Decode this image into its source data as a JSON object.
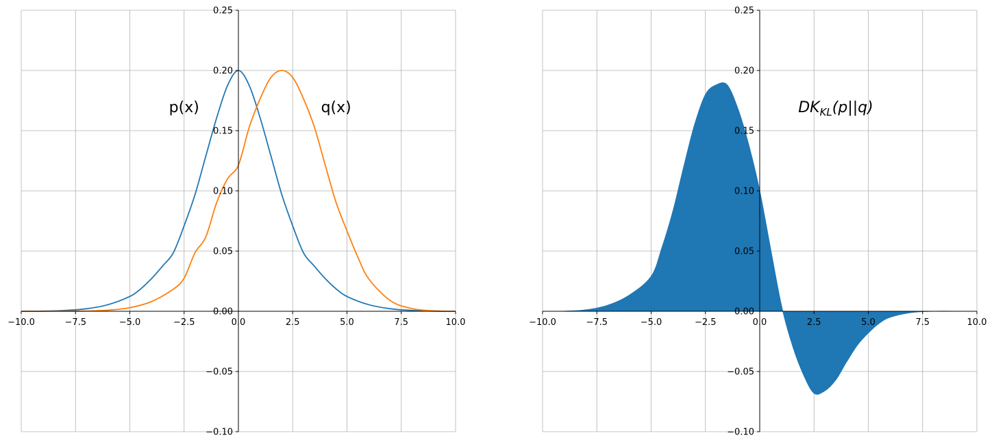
{
  "chart_data": [
    {
      "type": "line",
      "title": "",
      "xlabel": "",
      "ylabel": "",
      "xlim": [
        -10,
        10
      ],
      "ylim": [
        -0.1,
        0.25
      ],
      "grid": true,
      "x_ticks": [
        "−10.0",
        "−7.5",
        "−5.0",
        "−2.5",
        "0.0",
        "2.5",
        "5.0",
        "7.5",
        "10.0"
      ],
      "x_tick_values": [
        -10,
        -7.5,
        -5,
        -2.5,
        0,
        2.5,
        5,
        7.5,
        10
      ],
      "y_ticks": [
        "−0.10",
        "−0.05",
        "0.00",
        "0.05",
        "0.10",
        "0.15",
        "0.20",
        "0.25"
      ],
      "y_tick_values": [
        -0.1,
        -0.05,
        0,
        0.05,
        0.1,
        0.15,
        0.2,
        0.25
      ],
      "series": [
        {
          "name": "p(x)",
          "color": "#1f77b4",
          "x": [
            -10,
            -9,
            -8,
            -7,
            -6,
            -5,
            -4.5,
            -4,
            -3.5,
            -3,
            -2.5,
            -2,
            -1.5,
            -1,
            -0.5,
            0,
            0.5,
            1,
            1.5,
            2,
            2.5,
            3,
            3.5,
            4,
            4.5,
            5,
            6,
            7,
            8,
            9,
            10
          ],
          "y": [
            0.0,
            0.0001,
            0.0007,
            0.0021,
            0.0055,
            0.0123,
            0.0186,
            0.0271,
            0.0374,
            0.0485,
            0.071,
            0.0968,
            0.1289,
            0.1607,
            0.1875,
            0.2,
            0.1875,
            0.1607,
            0.1289,
            0.0968,
            0.071,
            0.0485,
            0.0374,
            0.0271,
            0.0186,
            0.0123,
            0.0055,
            0.0021,
            0.0007,
            0.0001,
            0.0
          ]
        },
        {
          "name": "q(x)",
          "color": "#ff7f0e",
          "x": [
            -10,
            -9,
            -8,
            -7,
            -6,
            -5,
            -4,
            -3,
            -2.5,
            -2,
            -1.5,
            -1,
            -0.5,
            0,
            0.5,
            1,
            1.5,
            2,
            2.5,
            3,
            3.5,
            4,
            4.5,
            5,
            5.5,
            6,
            7,
            8,
            9,
            10
          ],
          "y": [
            0.0,
            0.0,
            0.0001,
            0.0002,
            0.0009,
            0.003,
            0.0081,
            0.0183,
            0.0275,
            0.0485,
            0.0618,
            0.0903,
            0.11,
            0.1213,
            0.1529,
            0.1764,
            0.1942,
            0.2,
            0.1942,
            0.1764,
            0.1529,
            0.1213,
            0.0903,
            0.0668,
            0.045,
            0.027,
            0.0088,
            0.0022,
            0.0004,
            0.0
          ]
        }
      ],
      "annotations": [
        {
          "text": "p(x)",
          "x": -2.5,
          "y": 0.17
        },
        {
          "text": "q(x)",
          "x": 4.5,
          "y": 0.17
        }
      ]
    },
    {
      "type": "area",
      "title": "",
      "xlabel": "",
      "ylabel": "",
      "xlim": [
        -10,
        10
      ],
      "ylim": [
        -0.1,
        0.25
      ],
      "grid": true,
      "x_ticks": [
        "−10.0",
        "−7.5",
        "−5.0",
        "−2.5",
        "0.0",
        "2.5",
        "5.0",
        "7.5",
        "10.0"
      ],
      "x_tick_values": [
        -10,
        -7.5,
        -5,
        -2.5,
        0,
        2.5,
        5,
        7.5,
        10
      ],
      "y_ticks": [
        "−0.10",
        "−0.05",
        "0.00",
        "0.05",
        "0.10",
        "0.15",
        "0.20",
        "0.25"
      ],
      "y_tick_values": [
        -0.1,
        -0.05,
        0,
        0.05,
        0.1,
        0.15,
        0.2,
        0.25
      ],
      "series": [
        {
          "name": "",
          "color": "#1f77b4",
          "x": [
            -10,
            -9,
            -8,
            -7,
            -6,
            -5,
            -4.5,
            -4,
            -3.5,
            -3,
            -2.5,
            -2,
            -1.5,
            -1,
            -0.5,
            0,
            0.5,
            1,
            1.5,
            2,
            2.5,
            3,
            3.5,
            4,
            4.5,
            5,
            5.5,
            6,
            7,
            8,
            9,
            10
          ],
          "y": [
            0.0,
            0.0001,
            0.0012,
            0.005,
            0.0135,
            0.029,
            0.053,
            0.083,
            0.12,
            0.155,
            0.18,
            0.188,
            0.188,
            0.168,
            0.138,
            0.1,
            0.052,
            0.005,
            -0.028,
            -0.052,
            -0.068,
            -0.066,
            -0.057,
            -0.042,
            -0.028,
            -0.018,
            -0.01,
            -0.005,
            -0.001,
            0.0,
            0.0,
            0.0
          ]
        }
      ],
      "annotations": [
        {
          "text": "DK_KL(p||q)",
          "x": 3.5,
          "y": 0.17
        }
      ]
    }
  ],
  "panels": [
    {
      "annotation_labels": [
        "p(x)",
        "q(x)"
      ]
    },
    {
      "annotation_main": "DK",
      "annotation_sub": "KL",
      "annotation_tail": "(p||q)"
    }
  ]
}
